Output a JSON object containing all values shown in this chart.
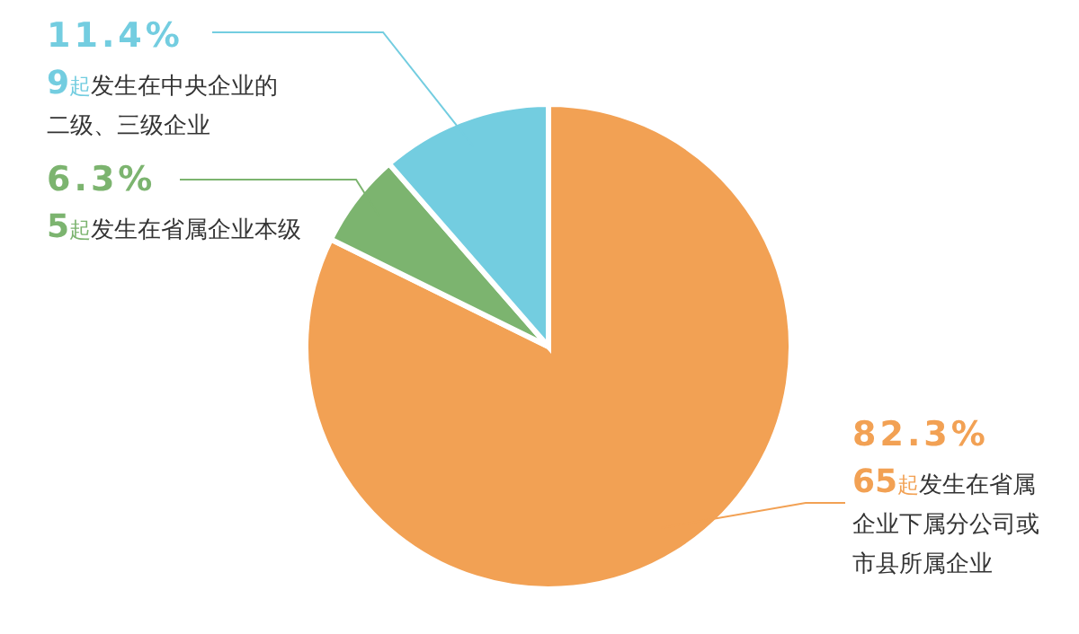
{
  "chart_data": {
    "type": "pie",
    "categories": [
      "65起发生在省属企业下属分公司或市县所属企业",
      "5起发生在省属企业本级",
      "9起发生在中央企业的二级、三级企业"
    ],
    "values": [
      82.3,
      6.3,
      11.4
    ],
    "value_labels": [
      "82.3%",
      "6.3%",
      "11.4%"
    ],
    "colors": [
      "#f2a154",
      "#7cb46f",
      "#73cde0"
    ]
  }
}
